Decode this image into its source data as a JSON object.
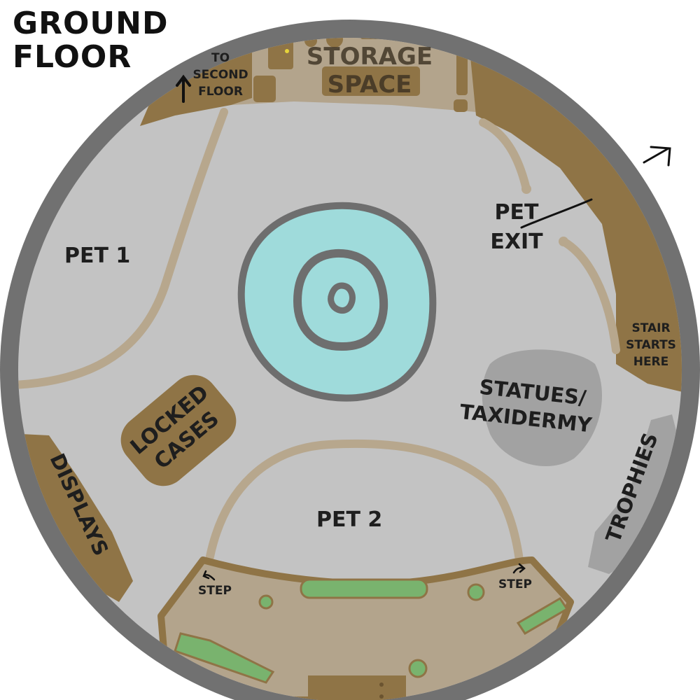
{
  "title": {
    "line1": "GROUND",
    "line2": "FLOOR"
  },
  "labels": {
    "to_second_floor": [
      "TO",
      "SECOND",
      "FLOOR"
    ],
    "storage_space": [
      "STORAGE",
      "SPACE"
    ],
    "pet_exit": [
      "PET",
      "EXIT"
    ],
    "pet1": "PET 1",
    "pet2": "PET 2",
    "stair": [
      "STAIR",
      "STARTS",
      "HERE"
    ],
    "statues": [
      "STATUES/",
      "TAXIDERMY"
    ],
    "locked_cases": [
      "LOCKED",
      "CASES"
    ],
    "displays": "DISPLAYS",
    "trophies": "TROPHIES",
    "step_left": "STEP",
    "step_right": "STEP"
  },
  "colors": {
    "wall": "#717171",
    "floor": "#c3c3c3",
    "wood": "#8f7446",
    "wood_light": "#a98f6a",
    "storage": "#b3a48c",
    "path": "#b7a78d",
    "water": "#9fdbdb",
    "water_ring": "#6e6e6e",
    "statue_area": "#a2a2a2",
    "grass": "#79b36e",
    "outline": "#6b5430"
  },
  "icons": [
    "up-arrow-icon",
    "exit-arrow-icon",
    "step-arrow-icon"
  ]
}
